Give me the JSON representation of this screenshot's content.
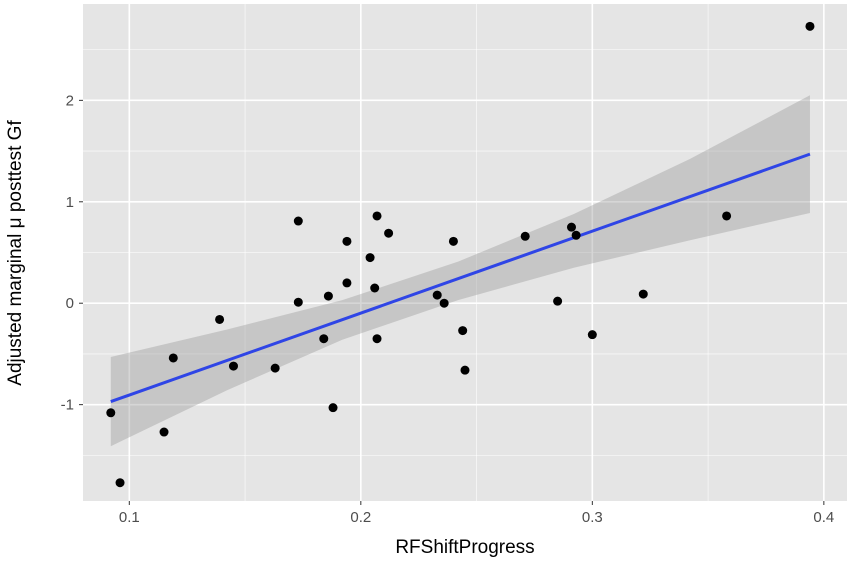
{
  "chart_data": {
    "type": "scatter",
    "title": "",
    "xlabel": "RFShiftProgress",
    "ylabel": "Adjusted marginal μ posttest Gf",
    "xlim": [
      0.08,
      0.41
    ],
    "ylim": [
      -1.95,
      2.95
    ],
    "x_ticks": [
      0.1,
      0.2,
      0.3,
      0.4
    ],
    "x_tick_labels": [
      "0.1",
      "0.2",
      "0.3",
      "0.4"
    ],
    "y_ticks": [
      -1,
      0,
      1,
      2
    ],
    "y_tick_labels": [
      "-1",
      "0",
      "1",
      "2"
    ],
    "grid": true,
    "colors": {
      "panel_background": "#e5e5e5",
      "grid_major": "#ffffff",
      "points": "#000000",
      "fit_line": "#2f45e6",
      "confidence_band": "#999999"
    },
    "points": [
      {
        "x": 0.092,
        "y": -1.08
      },
      {
        "x": 0.096,
        "y": -1.77
      },
      {
        "x": 0.115,
        "y": -1.27
      },
      {
        "x": 0.119,
        "y": -0.54
      },
      {
        "x": 0.139,
        "y": -0.16
      },
      {
        "x": 0.145,
        "y": -0.62
      },
      {
        "x": 0.163,
        "y": -0.64
      },
      {
        "x": 0.173,
        "y": 0.81
      },
      {
        "x": 0.173,
        "y": 0.01
      },
      {
        "x": 0.184,
        "y": -0.35
      },
      {
        "x": 0.186,
        "y": 0.07
      },
      {
        "x": 0.188,
        "y": -1.03
      },
      {
        "x": 0.194,
        "y": 0.61
      },
      {
        "x": 0.194,
        "y": 0.2
      },
      {
        "x": 0.204,
        "y": 0.45
      },
      {
        "x": 0.206,
        "y": 0.15
      },
      {
        "x": 0.207,
        "y": 0.86
      },
      {
        "x": 0.207,
        "y": -0.35
      },
      {
        "x": 0.212,
        "y": 0.69
      },
      {
        "x": 0.233,
        "y": 0.08
      },
      {
        "x": 0.236,
        "y": 0.0
      },
      {
        "x": 0.24,
        "y": 0.61
      },
      {
        "x": 0.244,
        "y": -0.27
      },
      {
        "x": 0.245,
        "y": -0.66
      },
      {
        "x": 0.271,
        "y": 0.66
      },
      {
        "x": 0.285,
        "y": 0.02
      },
      {
        "x": 0.291,
        "y": 0.75
      },
      {
        "x": 0.293,
        "y": 0.67
      },
      {
        "x": 0.3,
        "y": -0.31
      },
      {
        "x": 0.322,
        "y": 0.09
      },
      {
        "x": 0.358,
        "y": 0.86
      },
      {
        "x": 0.394,
        "y": 2.73
      }
    ],
    "fit": {
      "method": "linear",
      "line": [
        {
          "x": 0.092,
          "y": -0.97
        },
        {
          "x": 0.394,
          "y": 1.47
        }
      ],
      "ci_upper": [
        {
          "x": 0.092,
          "y": -0.53
        },
        {
          "x": 0.142,
          "y": -0.26
        },
        {
          "x": 0.192,
          "y": 0.03
        },
        {
          "x": 0.242,
          "y": 0.41
        },
        {
          "x": 0.292,
          "y": 0.88
        },
        {
          "x": 0.342,
          "y": 1.42
        },
        {
          "x": 0.394,
          "y": 2.05
        }
      ],
      "ci_lower": [
        {
          "x": 0.092,
          "y": -1.41
        },
        {
          "x": 0.142,
          "y": -0.86
        },
        {
          "x": 0.192,
          "y": -0.36
        },
        {
          "x": 0.242,
          "y": 0.03
        },
        {
          "x": 0.292,
          "y": 0.35
        },
        {
          "x": 0.342,
          "y": 0.62
        },
        {
          "x": 0.394,
          "y": 0.89
        }
      ]
    }
  }
}
